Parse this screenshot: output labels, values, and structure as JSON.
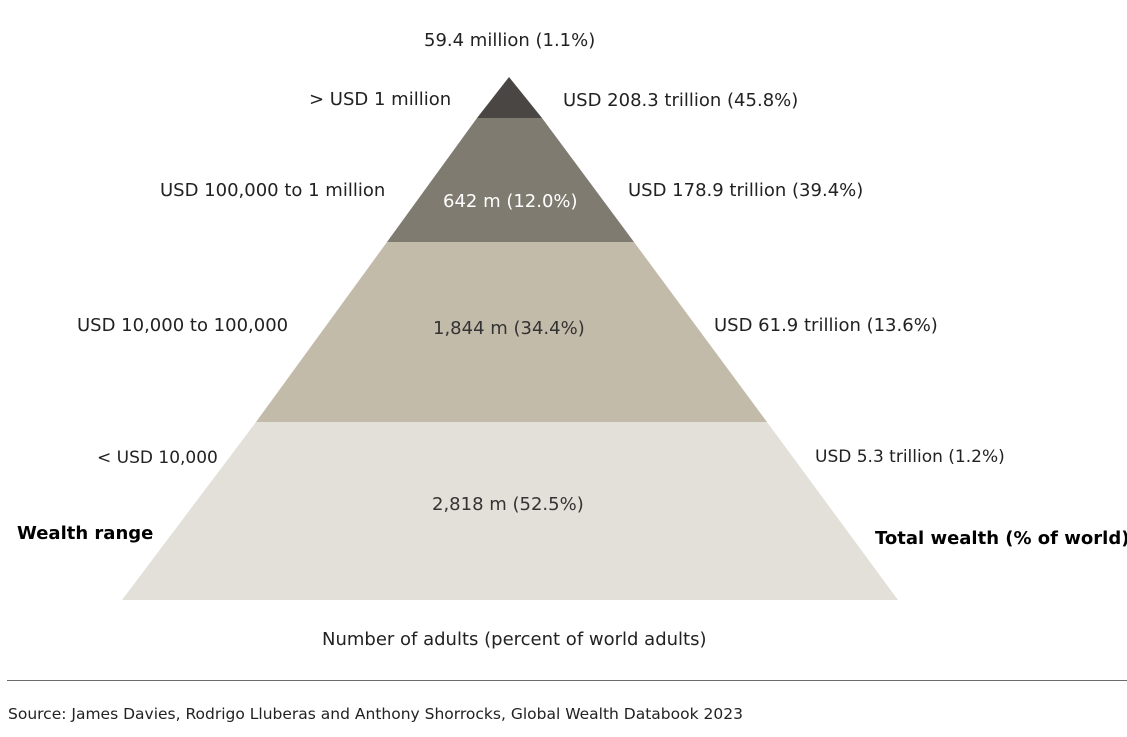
{
  "pyramid": {
    "top_count": "59.4 million (1.1%)",
    "tiers": [
      {
        "range": ">  USD 1 million",
        "adults": "",
        "wealth": "USD 208.3 trillion (45.8%)",
        "color": "#4a4643"
      },
      {
        "range": "USD 100,000  to 1 million",
        "adults": "642 m (12.0%)",
        "wealth": "USD 178.9 trillion (39.4%)",
        "color": "#7f7b70"
      },
      {
        "range": "USD 10,000  to 100,000",
        "adults": "1,844 m (34.4%)",
        "wealth": "USD 61.9 trillion (13.6%)",
        "color": "#c3bba9"
      },
      {
        "range": "< USD 10,000",
        "adults": "2,818 m (52.5%)",
        "wealth": "USD 5.3 trillion (1.2%)",
        "color": "#e3e0d9"
      }
    ],
    "left_heading": "Wealth range",
    "right_heading": "Total wealth (% of world)",
    "bottom_label": "Number of adults (percent of world adults)"
  },
  "source": "Source: James Davies, Rodrigo Lluberas and Anthony Shorrocks, Global Wealth Databook 2023"
}
